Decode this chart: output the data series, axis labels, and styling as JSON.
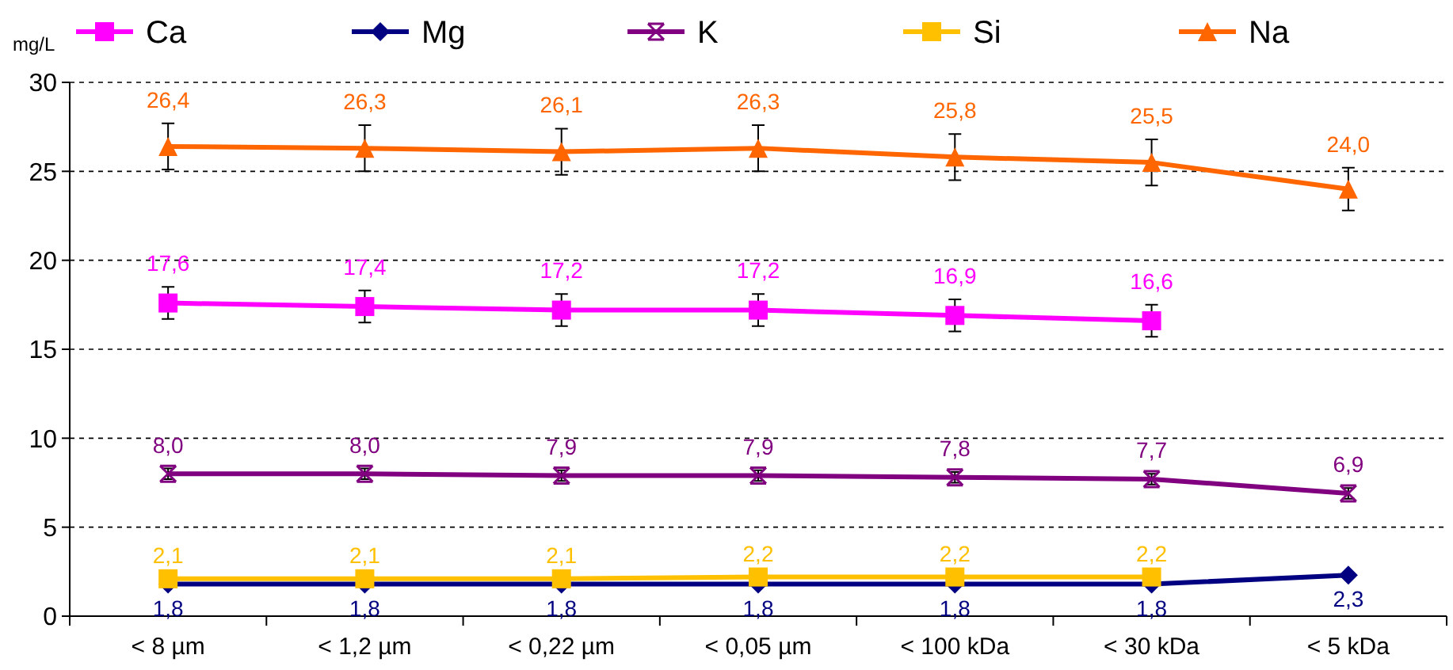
{
  "chart_data": {
    "type": "line",
    "ylabel": "mg/L",
    "categories": [
      "< 8 µm",
      "< 1,2 µm",
      "< 0,22 µm",
      "< 0,05 µm",
      "< 100 kDa",
      "< 30 kDa",
      "< 5 kDa"
    ],
    "series": [
      {
        "name": "Ca",
        "color": "#ff00ff",
        "marker": "square",
        "values": [
          17.6,
          17.4,
          17.2,
          17.2,
          16.9,
          16.6,
          null
        ],
        "errors": [
          0.9,
          0.9,
          0.9,
          0.9,
          0.9,
          0.9,
          null
        ],
        "value_labels": [
          "17,6",
          "17,4",
          "17,2",
          "17,2",
          "16,9",
          "16,6",
          null
        ]
      },
      {
        "name": "Mg",
        "color": "#000080",
        "marker": "diamond",
        "values": [
          1.8,
          1.8,
          1.8,
          1.8,
          1.8,
          1.8,
          2.3
        ],
        "value_labels": [
          "1,8",
          "1,8",
          "1,8",
          "1,8",
          "1,8",
          "1,8",
          "2,3"
        ]
      },
      {
        "name": "K",
        "color": "#800080",
        "marker": "cross",
        "values": [
          8.0,
          8.0,
          7.9,
          7.9,
          7.8,
          7.7,
          6.9
        ],
        "errors": [
          0.3,
          0.3,
          0.3,
          0.3,
          0.3,
          0.3,
          0.3
        ],
        "value_labels": [
          "8,0",
          "8,0",
          "7,9",
          "7,9",
          "7,8",
          "7,7",
          "6,9"
        ]
      },
      {
        "name": "Si",
        "color": "#ffc000",
        "marker": "square",
        "values": [
          2.1,
          2.1,
          2.1,
          2.2,
          2.2,
          2.2,
          null
        ],
        "value_labels": [
          "2,1",
          "2,1",
          "2,1",
          "2,2",
          "2,2",
          "2,2",
          null
        ]
      },
      {
        "name": "Na",
        "color": "#ff6600",
        "marker": "triangle",
        "values": [
          26.4,
          26.3,
          26.1,
          26.3,
          25.8,
          25.5,
          24.0
        ],
        "errors": [
          1.3,
          1.3,
          1.3,
          1.3,
          1.3,
          1.3,
          1.2
        ],
        "value_labels": [
          "26,4",
          "26,3",
          "26,1",
          "26,3",
          "25,8",
          "25,5",
          "24,0"
        ]
      }
    ],
    "ylim": [
      0,
      30
    ],
    "yticks": [
      0,
      5,
      10,
      15,
      20,
      25,
      30
    ],
    "grid": "y",
    "legend": "top",
    "line_style": "solid"
  }
}
